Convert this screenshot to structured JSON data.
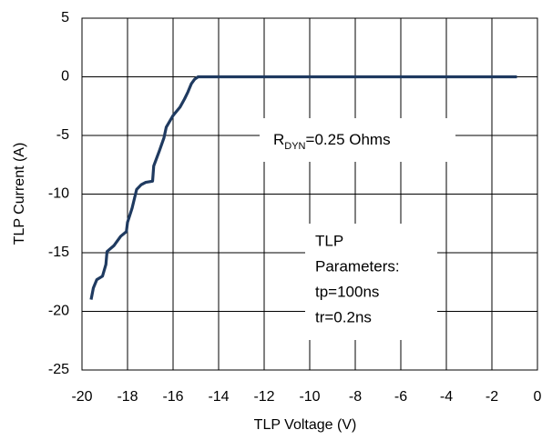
{
  "chart_data": {
    "type": "line",
    "x_label": "TLP Voltage (V)",
    "y_label": "TLP Current (A)",
    "xlim": [
      -20,
      0
    ],
    "xticks": [
      -20,
      -18,
      -16,
      -14,
      -12,
      -10,
      -8,
      -6,
      -4,
      -2,
      0
    ],
    "ylim": [
      -25,
      5
    ],
    "yticks": [
      5,
      0,
      -5,
      -10,
      -15,
      -20,
      -25
    ],
    "grid": true,
    "series": [
      {
        "color": "#1f3a60",
        "x": [
          -19.6,
          -19.5,
          -19.35,
          -19.1,
          -18.95,
          -18.9,
          -18.6,
          -18.3,
          -18.05,
          -18.0,
          -17.8,
          -17.6,
          -17.4,
          -17.2,
          -16.9,
          -16.85,
          -16.6,
          -16.4,
          -16.3,
          -16.0,
          -15.7,
          -15.5,
          -15.35,
          -15.2,
          -15.05,
          -14.9,
          -0.9
        ],
        "y": [
          -19.0,
          -18.0,
          -17.3,
          -17.0,
          -16.0,
          -14.9,
          -14.4,
          -13.6,
          -13.2,
          -12.4,
          -11.2,
          -9.6,
          -9.2,
          -9.0,
          -8.9,
          -7.6,
          -6.3,
          -5.2,
          -4.3,
          -3.3,
          -2.6,
          -1.9,
          -1.3,
          -0.6,
          -0.2,
          0.0,
          0.0
        ]
      }
    ],
    "annotations": [
      {
        "text": "R",
        "sub": "DYN",
        "rest": "=0.25 Ohms"
      },
      {
        "lines": [
          "TLP",
          "Parameters:",
          "tp=100ns",
          "tr=0.2ns"
        ]
      }
    ]
  }
}
